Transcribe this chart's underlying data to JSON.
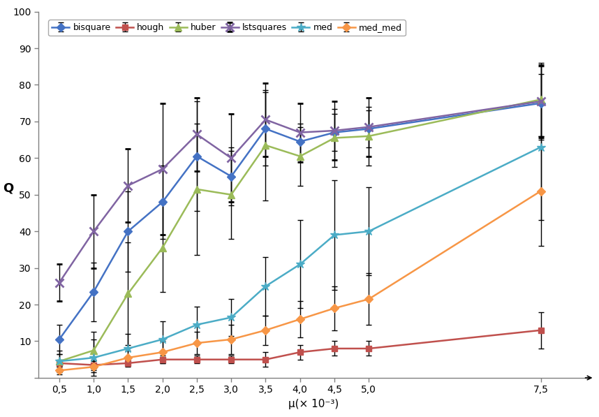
{
  "x": [
    0.5,
    1.0,
    1.5,
    2.0,
    2.5,
    3.0,
    3.5,
    4.0,
    4.5,
    5.0,
    7.5
  ],
  "series": {
    "bisquare": {
      "y": [
        10.5,
        23.5,
        40.0,
        48.0,
        60.5,
        55.0,
        68.0,
        64.5,
        67.0,
        68.0,
        75.0
      ],
      "yerr": [
        4,
        8,
        11,
        10,
        15,
        8,
        10,
        5,
        5,
        5,
        10
      ],
      "color": "#4472C4",
      "marker": "D",
      "ms": 6
    },
    "hough": {
      "y": [
        4.0,
        3.5,
        4.0,
        5.0,
        5.0,
        5.0,
        5.0,
        7.0,
        8.0,
        8.0,
        13.0
      ],
      "yerr": [
        1,
        1.5,
        1,
        1,
        1,
        1,
        2,
        2,
        2,
        2,
        5
      ],
      "color": "#C0504D",
      "marker": "s",
      "ms": 6
    },
    "huber": {
      "y": [
        4.5,
        7.5,
        23.0,
        35.5,
        51.5,
        50.0,
        63.5,
        60.5,
        65.5,
        66.0,
        76.0
      ],
      "yerr": [
        2,
        5,
        14,
        12,
        18,
        12,
        15,
        8,
        8,
        8,
        10
      ],
      "color": "#9BBB59",
      "marker": "^",
      "ms": 7
    },
    "lstsquares": {
      "y": [
        26.0,
        40.0,
        52.5,
        57.0,
        66.5,
        60.0,
        70.5,
        67.0,
        67.5,
        68.5,
        75.5
      ],
      "yerr": [
        5,
        10,
        10,
        18,
        10,
        12,
        10,
        8,
        8,
        8,
        10
      ],
      "color": "#8064A2",
      "marker": "x",
      "ms": 8,
      "mew": 2
    },
    "med": {
      "y": [
        4.5,
        5.5,
        8.0,
        10.5,
        14.5,
        16.5,
        25.0,
        31.0,
        39.0,
        40.0,
        63.0
      ],
      "yerr": [
        3,
        5,
        4,
        5,
        5,
        5,
        8,
        12,
        15,
        12,
        20
      ],
      "color": "#4BACC6",
      "marker": "*",
      "ms": 9
    },
    "med_med": {
      "y": [
        2.0,
        3.0,
        5.5,
        7.0,
        9.5,
        10.5,
        13.0,
        16.0,
        19.0,
        21.5,
        51.0
      ],
      "yerr": [
        1,
        1.5,
        2,
        3,
        3,
        4,
        4,
        5,
        6,
        7,
        15
      ],
      "color": "#F79646",
      "marker": "D",
      "ms": 6
    }
  },
  "xlabel": "μ(× 10⁻³)",
  "ylabel": "Q",
  "xlim": [
    0.2,
    8.2
  ],
  "ylim": [
    0,
    100
  ],
  "yticks": [
    0,
    10,
    20,
    30,
    40,
    50,
    60,
    70,
    80,
    90,
    100
  ],
  "xtick_vals": [
    0.5,
    1.0,
    1.5,
    2.0,
    2.5,
    3.0,
    3.5,
    4.0,
    4.5,
    5.0,
    7.5
  ],
  "xtick_labels": [
    "0,5",
    "1,0",
    "1,5",
    "2,0",
    "2,5",
    "3,0",
    "3,5",
    "4,0",
    "4,5",
    "5,0",
    "7,5"
  ],
  "legend_order": [
    "bisquare",
    "hough",
    "huber",
    "lstsquares",
    "med",
    "med_med"
  ],
  "figsize": [
    8.58,
    5.97
  ],
  "dpi": 100,
  "spine_color": "#808080",
  "tick_color": "#404040"
}
